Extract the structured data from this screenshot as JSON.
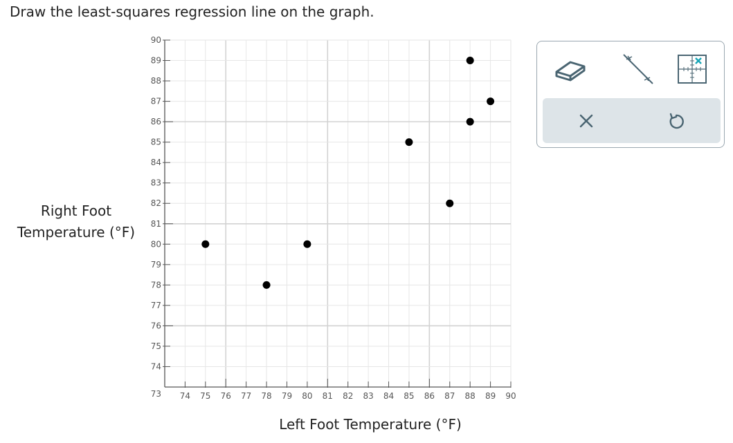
{
  "prompt": "Draw the least-squares regression line on the graph.",
  "chart_data": {
    "type": "scatter",
    "title": "",
    "xlabel": "Left Foot Temperature (°F)",
    "ylabel_lines": [
      "Right Foot",
      "Temperature (°F)"
    ],
    "xlim": [
      73,
      90
    ],
    "ylim": [
      73,
      90
    ],
    "x_ticks": [
      74,
      75,
      76,
      77,
      78,
      79,
      80,
      81,
      82,
      83,
      84,
      85,
      86,
      87,
      88,
      89,
      90
    ],
    "y_ticks": [
      74,
      75,
      76,
      77,
      78,
      79,
      80,
      81,
      82,
      83,
      84,
      85,
      86,
      87,
      88,
      89,
      90
    ],
    "origin_label": "73",
    "grid": true,
    "points": [
      {
        "x": 75,
        "y": 80
      },
      {
        "x": 78,
        "y": 78
      },
      {
        "x": 80,
        "y": 80
      },
      {
        "x": 85,
        "y": 85
      },
      {
        "x": 87,
        "y": 82
      },
      {
        "x": 88,
        "y": 89
      },
      {
        "x": 88,
        "y": 86
      },
      {
        "x": 89,
        "y": 87
      }
    ]
  },
  "toolbar": {
    "tools": [
      "eraser-icon",
      "line-tool-icon",
      "point-tool-icon"
    ],
    "actions": [
      "clear-icon",
      "undo-icon"
    ],
    "icon_color": "#4a6572",
    "accent": "#1aa6b7"
  }
}
